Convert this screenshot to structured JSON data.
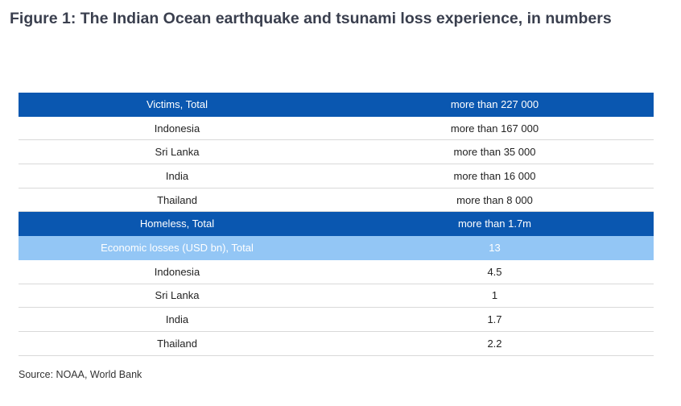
{
  "title": "Figure 1: The Indian Ocean earthquake and tsunami loss experience, in numbers",
  "table": {
    "rows": [
      {
        "label": "Victims, Total",
        "value": "more than 227 000",
        "style": "dark"
      },
      {
        "label": "Indonesia",
        "value": "more than 167 000",
        "style": "plain"
      },
      {
        "label": "Sri Lanka",
        "value": "more than 35 000",
        "style": "plain"
      },
      {
        "label": "India",
        "value": "more than 16 000",
        "style": "plain"
      },
      {
        "label": "Thailand",
        "value": "more than 8 000",
        "style": "plain"
      },
      {
        "label": "Homeless, Total",
        "value": "more than 1.7m",
        "style": "dark"
      },
      {
        "label": "Economic losses (USD bn), Total",
        "value": "13",
        "style": "light"
      },
      {
        "label": "Indonesia",
        "value": "4.5",
        "style": "plain"
      },
      {
        "label": "Sri Lanka",
        "value": "1",
        "style": "plain"
      },
      {
        "label": "India",
        "value": "1.7",
        "style": "plain"
      },
      {
        "label": "Thailand",
        "value": "2.2",
        "style": "plain"
      }
    ]
  },
  "source": "Source: NOAA, World Bank",
  "colors": {
    "dark_header": "#0a57b0",
    "light_header": "#93c6f5",
    "title": "#3a3f4e"
  }
}
